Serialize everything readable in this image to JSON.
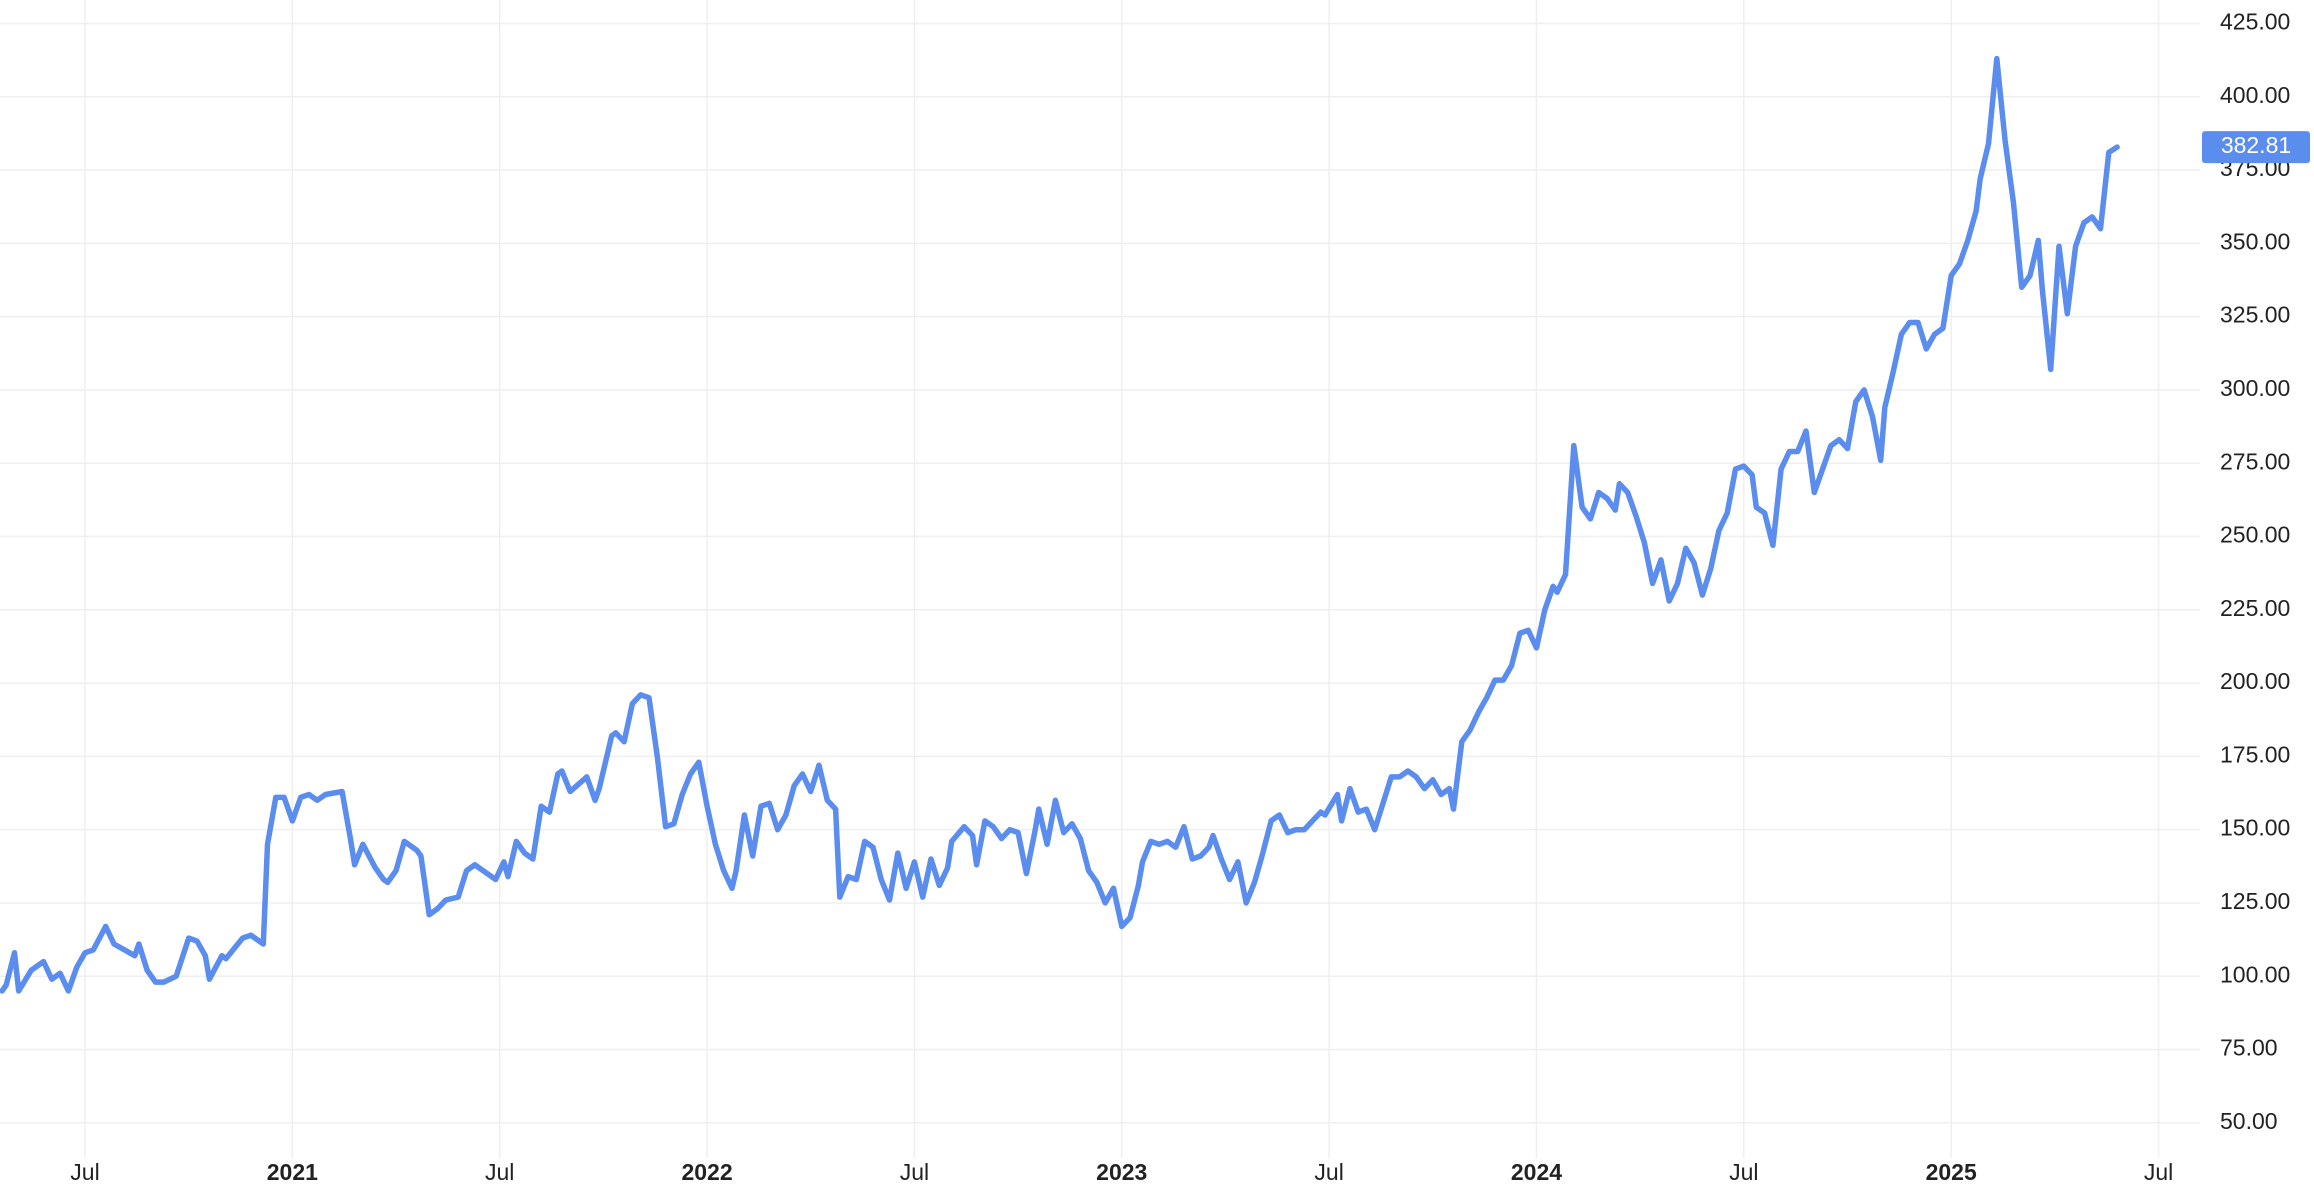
{
  "chart_data": {
    "type": "line",
    "color": "#5b8def",
    "grid": true,
    "xlim": [
      2020.295,
      2025.6
    ],
    "ylim": [
      38,
      433
    ],
    "xticks": [
      {
        "value": 2020.5,
        "label": "Jul"
      },
      2021,
      {
        "value": 2021.5,
        "label": "Jul"
      },
      2022,
      {
        "value": 2022.5,
        "label": "Jul"
      },
      2023,
      {
        "value": 2023.5,
        "label": "Jul"
      },
      2024,
      {
        "value": 2024.5,
        "label": "Jul"
      },
      2025,
      {
        "value": 2025.5,
        "label": "Jul"
      }
    ],
    "yticks": [
      {
        "value": 50,
        "label": "50.00"
      },
      {
        "value": 75,
        "label": "75.00"
      },
      {
        "value": 100,
        "label": "100.00"
      },
      {
        "value": 125,
        "label": "125.00"
      },
      {
        "value": 150,
        "label": "150.00"
      },
      {
        "value": 175,
        "label": "175.00"
      },
      {
        "value": 200,
        "label": "200.00"
      },
      {
        "value": 225,
        "label": "225.00"
      },
      {
        "value": 250,
        "label": "250.00"
      },
      {
        "value": 275,
        "label": "275.00"
      },
      {
        "value": 300,
        "label": "300.00"
      },
      {
        "value": 325,
        "label": "325.00"
      },
      {
        "value": 350,
        "label": "350.00"
      },
      {
        "value": 375,
        "label": "375.00"
      },
      {
        "value": 400,
        "label": "400.00"
      },
      {
        "value": 425,
        "label": "425.00"
      }
    ],
    "x": [
      2020.3,
      2020.31,
      2020.33,
      2020.34,
      2020.37,
      2020.4,
      2020.42,
      2020.44,
      2020.46,
      2020.48,
      2020.5,
      2020.52,
      2020.55,
      2020.57,
      2020.62,
      2020.63,
      2020.65,
      2020.67,
      2020.69,
      2020.72,
      2020.75,
      2020.77,
      2020.79,
      2020.8,
      2020.83,
      2020.84,
      2020.88,
      2020.9,
      2020.93,
      2020.94,
      2020.96,
      2020.98,
      2021.0,
      2021.02,
      2021.04,
      2021.06,
      2021.08,
      2021.12,
      2021.14,
      2021.15,
      2021.17,
      2021.2,
      2021.22,
      2021.23,
      2021.25,
      2021.27,
      2021.3,
      2021.31,
      2021.33,
      2021.35,
      2021.37,
      2021.4,
      2021.42,
      2021.44,
      2021.47,
      2021.49,
      2021.51,
      2021.52,
      2021.54,
      2021.56,
      2021.58,
      2021.6,
      2021.62,
      2021.64,
      2021.65,
      2021.67,
      2021.71,
      2021.73,
      2021.74,
      2021.77,
      2021.78,
      2021.8,
      2021.82,
      2021.84,
      2021.86,
      2021.88,
      2021.9,
      2021.92,
      2021.94,
      2021.96,
      2021.98,
      2022.0,
      2022.02,
      2022.04,
      2022.06,
      2022.07,
      2022.09,
      2022.11,
      2022.13,
      2022.15,
      2022.17,
      2022.19,
      2022.21,
      2022.23,
      2022.25,
      2022.27,
      2022.29,
      2022.31,
      2022.32,
      2022.34,
      2022.36,
      2022.38,
      2022.4,
      2022.42,
      2022.44,
      2022.46,
      2022.48,
      2022.5,
      2022.52,
      2022.54,
      2022.56,
      2022.58,
      2022.59,
      2022.62,
      2022.64,
      2022.65,
      2022.67,
      2022.69,
      2022.71,
      2022.73,
      2022.75,
      2022.77,
      2022.79,
      2022.8,
      2022.82,
      2022.84,
      2022.86,
      2022.88,
      2022.9,
      2022.92,
      2022.94,
      2022.96,
      2022.98,
      2023.0,
      2023.02,
      2023.04,
      2023.05,
      2023.07,
      2023.09,
      2023.11,
      2023.13,
      2023.15,
      2023.17,
      2023.19,
      2023.21,
      2023.22,
      2023.24,
      2023.26,
      2023.28,
      2023.3,
      2023.32,
      2023.34,
      2023.36,
      2023.38,
      2023.4,
      2023.42,
      2023.44,
      2023.46,
      2023.48,
      2023.49,
      2023.52,
      2023.53,
      2023.55,
      2023.57,
      2023.59,
      2023.61,
      2023.63,
      2023.65,
      2023.67,
      2023.69,
      2023.71,
      2023.73,
      2023.75,
      2023.77,
      2023.79,
      2023.8,
      2023.82,
      2023.84,
      2023.86,
      2023.88,
      2023.9,
      2023.92,
      2023.94,
      2023.96,
      2023.98,
      2024.0,
      2024.02,
      2024.04,
      2024.05,
      2024.07,
      2024.09,
      2024.11,
      2024.13,
      2024.15,
      2024.17,
      2024.19,
      2024.2,
      2024.22,
      2024.24,
      2024.26,
      2024.28,
      2024.3,
      2024.32,
      2024.34,
      2024.36,
      2024.38,
      2024.4,
      2024.42,
      2024.44,
      2024.46,
      2024.48,
      2024.5,
      2024.52,
      2024.53,
      2024.55,
      2024.57,
      2024.59,
      2024.61,
      2024.63,
      2024.65,
      2024.67,
      2024.69,
      2024.71,
      2024.73,
      2024.75,
      2024.77,
      2024.79,
      2024.81,
      2024.83,
      2024.84,
      2024.86,
      2024.88,
      2024.9,
      2024.92,
      2024.94,
      2024.96,
      2024.98,
      2025.0,
      2025.02,
      2025.04,
      2025.06,
      2025.07,
      2025.09,
      2025.11,
      2025.13,
      2025.15,
      2025.17,
      2025.19,
      2025.21,
      2025.22,
      2025.24,
      2025.26,
      2025.28,
      2025.3,
      2025.32,
      2025.34,
      2025.36,
      2025.38,
      2025.4
    ],
    "values": [
      95,
      97,
      108,
      95,
      102,
      105,
      99,
      101,
      95,
      103,
      108,
      109,
      117,
      111,
      107,
      111,
      102,
      98,
      98,
      100,
      113,
      112,
      107,
      99,
      107,
      106,
      113,
      114,
      111,
      145,
      161,
      161,
      153,
      161,
      162,
      160,
      162,
      163,
      147,
      138,
      145,
      137,
      133,
      132,
      136,
      146,
      143,
      141,
      121,
      123,
      126,
      127,
      136,
      138,
      135,
      133,
      139,
      134,
      146,
      142,
      140,
      158,
      156,
      169,
      170,
      163,
      168,
      160,
      164,
      182,
      183,
      180,
      193,
      196,
      195,
      175,
      151,
      152,
      162,
      169,
      173,
      158,
      145,
      136,
      130,
      136,
      155,
      141,
      158,
      159,
      150,
      155,
      165,
      169,
      163,
      172,
      160,
      157,
      127,
      134,
      133,
      146,
      144,
      133,
      126,
      142,
      130,
      139,
      127,
      140,
      131,
      137,
      146,
      151,
      148,
      138,
      153,
      151,
      147,
      150,
      149,
      135,
      149,
      157,
      145,
      160,
      149,
      152,
      147,
      136,
      132,
      125,
      130,
      117,
      120,
      131,
      139,
      146,
      145,
      146,
      144,
      151,
      140,
      141,
      144,
      148,
      140,
      133,
      139,
      125,
      132,
      142,
      153,
      155,
      149,
      150,
      150,
      153,
      156,
      155,
      162,
      153,
      164,
      156,
      157,
      150,
      159,
      168,
      168,
      170,
      168,
      164,
      167,
      162,
      164,
      157,
      180,
      184,
      190,
      195,
      201,
      201,
      206,
      217,
      218,
      212,
      225,
      233,
      231,
      237,
      281,
      260,
      256,
      265,
      263,
      259,
      268,
      265,
      257,
      248,
      234,
      242,
      228,
      234,
      246,
      241,
      230,
      239,
      252,
      258,
      273,
      274,
      271,
      260,
      258,
      247,
      273,
      279,
      279,
      286,
      265,
      273,
      281,
      283,
      280,
      296,
      300,
      291,
      276,
      294,
      306,
      319,
      323,
      323,
      314,
      319,
      321,
      339,
      343,
      351,
      361,
      372,
      384,
      413,
      385,
      364,
      335,
      339,
      351,
      334,
      307,
      349,
      326,
      349,
      357,
      359,
      355,
      381,
      382.81
    ]
  }
}
